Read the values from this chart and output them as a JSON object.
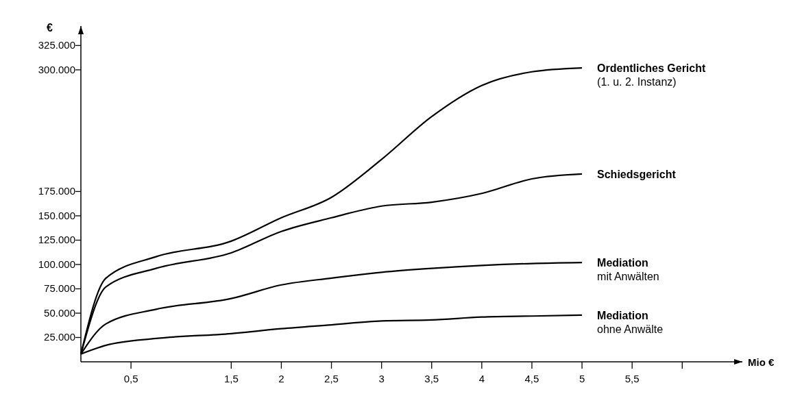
{
  "chart_data": {
    "type": "line",
    "xlabel": "Mio €",
    "ylabel": "€",
    "x": [
      0,
      0.25,
      0.75,
      1.5,
      2,
      2.5,
      3,
      3.5,
      4,
      4.5,
      5
    ],
    "series": [
      {
        "name": "Ordentliches Gericht\n(1. u. 2. Instanz)",
        "color": "#000000",
        "values": [
          8000,
          86000,
          108000,
          124000,
          148000,
          169000,
          208000,
          252000,
          284000,
          298000,
          302000
        ]
      },
      {
        "name": "Schiedsgericht",
        "color": "#000000",
        "values": [
          8000,
          77000,
          96000,
          112000,
          134000,
          148000,
          160000,
          164000,
          173000,
          188000,
          193000
        ]
      },
      {
        "name": "Mediation\nmit Anwälten",
        "color": "#000000",
        "values": [
          8000,
          39000,
          54000,
          65000,
          79000,
          86000,
          92000,
          96000,
          99000,
          101000,
          102000
        ]
      },
      {
        "name": "Mediation\nohne Anwälte",
        "color": "#000000",
        "values": [
          8000,
          17000,
          24000,
          29000,
          34000,
          38000,
          42000,
          43000,
          46000,
          47000,
          48000
        ]
      }
    ],
    "xlim": [
      0,
      6.6
    ],
    "ylim": [
      0,
      345000
    ],
    "xticks": [
      {
        "value": 0.5,
        "label": "0,5"
      },
      {
        "value": 1.5,
        "label": "1,5"
      },
      {
        "value": 2,
        "label": "2"
      },
      {
        "value": 2.5,
        "label": "2,5"
      },
      {
        "value": 3,
        "label": "3"
      },
      {
        "value": 3.5,
        "label": "3,5"
      },
      {
        "value": 4,
        "label": "4"
      },
      {
        "value": 4.5,
        "label": "4,5"
      },
      {
        "value": 5,
        "label": "5"
      },
      {
        "value": 5.5,
        "label": "5,5"
      },
      {
        "value": 6,
        "label": null
      }
    ],
    "yticks": [
      {
        "value": 25000,
        "label": "25.000"
      },
      {
        "value": 50000,
        "label": "50.000"
      },
      {
        "value": 75000,
        "label": "75.000"
      },
      {
        "value": 100000,
        "label": "100.000"
      },
      {
        "value": 125000,
        "label": "125.000"
      },
      {
        "value": 150000,
        "label": "150.000"
      },
      {
        "value": 175000,
        "label": "175.000"
      },
      {
        "value": 300000,
        "label": "300.000"
      },
      {
        "value": 325000,
        "label": "325.000"
      }
    ],
    "grid": false
  }
}
